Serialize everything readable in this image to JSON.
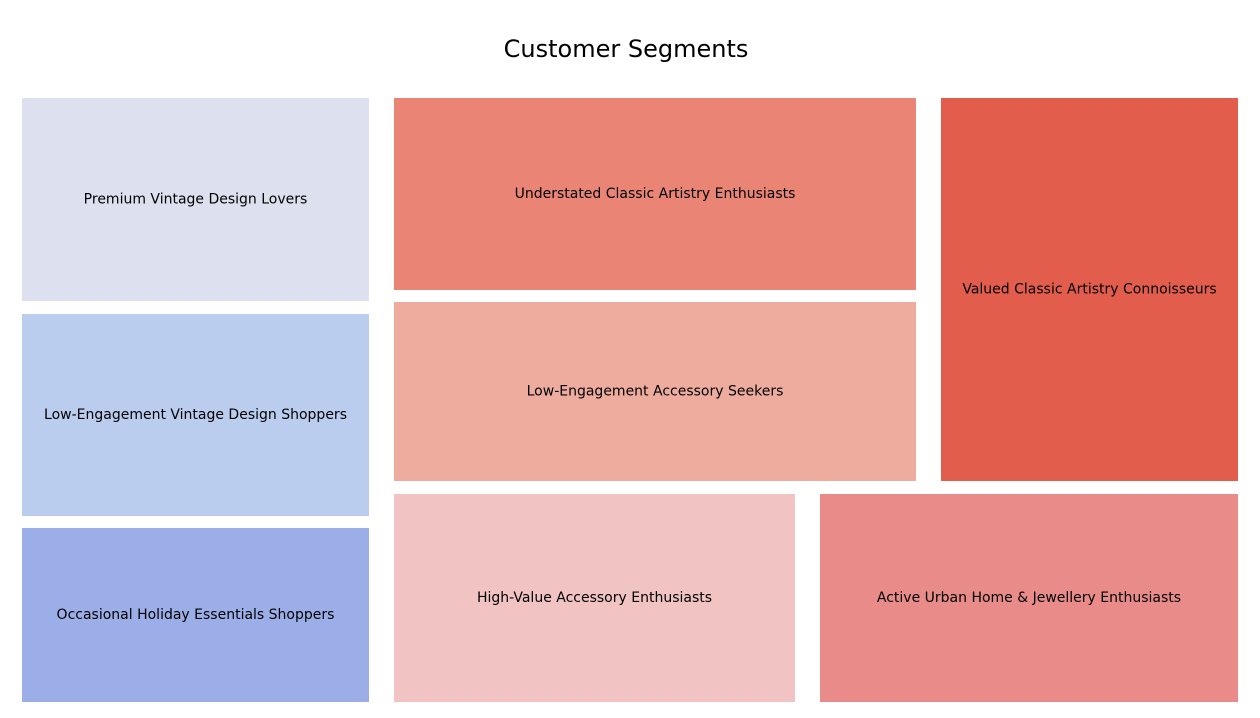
{
  "chart_data": {
    "type": "treemap",
    "title": "Customer Segments",
    "groups": [
      {
        "segments": [
          {
            "label": "Premium Vintage Design Lovers",
            "color": "#dde0ef"
          },
          {
            "label": "Low-Engagement Vintage Design Shoppers",
            "color": "#bacdee"
          },
          {
            "label": "Occasional Holiday Essentials Shoppers",
            "color": "#9caee8"
          }
        ]
      },
      {
        "segments": [
          {
            "label": "Understated Classic Artistry Enthusiasts",
            "color": "#ea8576"
          },
          {
            "label": "Valued Classic Artistry Connoisseurs",
            "color": "#e35d4c"
          },
          {
            "label": "Low-Engagement Accessory Seekers",
            "color": "#eeac9e"
          },
          {
            "label": "High-Value Accessory Enthusiasts",
            "color": "#f1c3c3"
          },
          {
            "label": "Active Urban Home & Jewellery Enthusiasts",
            "color": "#e98b89"
          }
        ]
      }
    ]
  }
}
